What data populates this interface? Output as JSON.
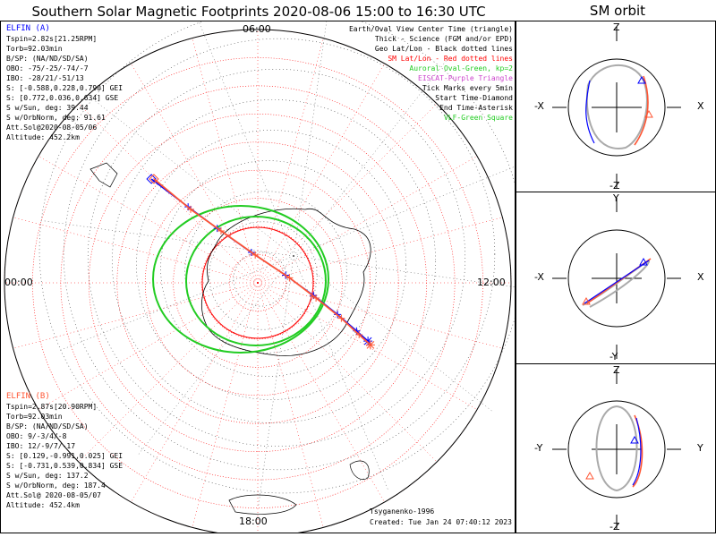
{
  "title": "Southern Solar Magnetic Footprints 2020-08-06 15:00 to 16:30 UTC",
  "sm_orbit_title": "SM orbit",
  "map_labels": {
    "top": "06:00",
    "left": "00:00",
    "right": "12:00",
    "bottom": "18:00"
  },
  "legend": [
    {
      "text": "Earth/Oval View Center Time (triangle)",
      "color": "#000000"
    },
    {
      "text": "Thick - Science (FGM and/or EPD)",
      "color": "#000000"
    },
    {
      "text": "Geo Lat/Lon - Black dotted lines",
      "color": "#000000"
    },
    {
      "text": "SM Lat/Lon - Red dotted lines",
      "color": "#ff0000"
    },
    {
      "text": "Auroral Oval-Green, kp=2",
      "color": "#22cc22"
    },
    {
      "text": "EISCAT-Purple Triangle",
      "color": "#cc44cc"
    },
    {
      "text": "Tick Marks every 5min",
      "color": "#000000"
    },
    {
      "text": "Start Time-Diamond",
      "color": "#000000"
    },
    {
      "text": "End Time-Asterisk",
      "color": "#000000"
    },
    {
      "text": "VLF-Green Square",
      "color": "#22cc22"
    }
  ],
  "elfin_a": {
    "name": "ELFIN (A)",
    "color": "#0000ff",
    "lines": [
      "Tspin=2.82s[21.25RPM]",
      "Torb=92.03min",
      "B/SP: (NA/ND/SD/SA)",
      "OBO: -75/-25/-74/-7",
      "IBO: -28/21/-51/13",
      "S: [-0.588,0.228,0.790] GEI",
      "S: [0.772,0.036,0.634] GSE",
      "S w/Sun, deg: 39.44",
      "S w/OrbNorm, deg: 91.61",
      "Att.Sol@2020-08-05/06",
      "Altitude: 452.2km"
    ]
  },
  "elfin_b": {
    "name": "ELFIN (B)",
    "color": "#ff5533",
    "lines": [
      "Tspin=2.87s[20.90RPM]",
      "Torb=92.03min",
      "B/SP: (NA/ND/SD/SA)",
      "OBO: 9/-3/4/-8",
      "IBO: 12/-9/7/-17",
      "S: [0.129,-0.991,0.025] GEI",
      "S: [-0.731,0.539,0.834] GSE",
      "S w/Sun, deg: 137.2",
      "S w/OrbNorm, deg: 187.4",
      "Att.Sol@ 2020-08-05/07",
      "Altitude: 452.4km"
    ]
  },
  "credit": "Tsyganenko-1996",
  "created": "Created: Tue Jan 24 07:40:12 2023",
  "sm_panels": [
    {
      "top": "Z",
      "bottom": "-Z",
      "left": "-X",
      "right": "X"
    },
    {
      "top": "Y",
      "bottom": "-Y",
      "left": "-X",
      "right": "X"
    },
    {
      "top": "Z",
      "bottom": "-Z",
      "left": "-Y",
      "right": "Y"
    }
  ],
  "colors": {
    "elfin_a": "#0000ff",
    "elfin_b": "#ff5533",
    "oval": "#22cc22",
    "sm_grid": "#ff0000",
    "orbit_gray": "#aaaaaa"
  },
  "chart_data": {
    "type": "polar-map",
    "footprints": [
      {
        "name": "ELFIN (A)",
        "points": [
          [
            -0.84,
            0.82
          ],
          [
            -0.55,
            0.6
          ],
          [
            -0.32,
            0.43
          ],
          [
            -0.05,
            0.24
          ],
          [
            0.22,
            0.06
          ],
          [
            0.44,
            -0.1
          ],
          [
            0.63,
            -0.25
          ],
          [
            0.78,
            -0.38
          ],
          [
            0.87,
            -0.46
          ]
        ]
      },
      {
        "name": "ELFIN (B)",
        "points": [
          [
            -0.82,
            0.82
          ],
          [
            -0.53,
            0.58
          ],
          [
            -0.29,
            0.41
          ],
          [
            -0.02,
            0.22
          ],
          [
            0.25,
            0.04
          ],
          [
            0.46,
            -0.12
          ],
          [
            0.66,
            -0.28
          ],
          [
            0.8,
            -0.41
          ],
          [
            0.89,
            -0.49
          ]
        ]
      }
    ]
  }
}
